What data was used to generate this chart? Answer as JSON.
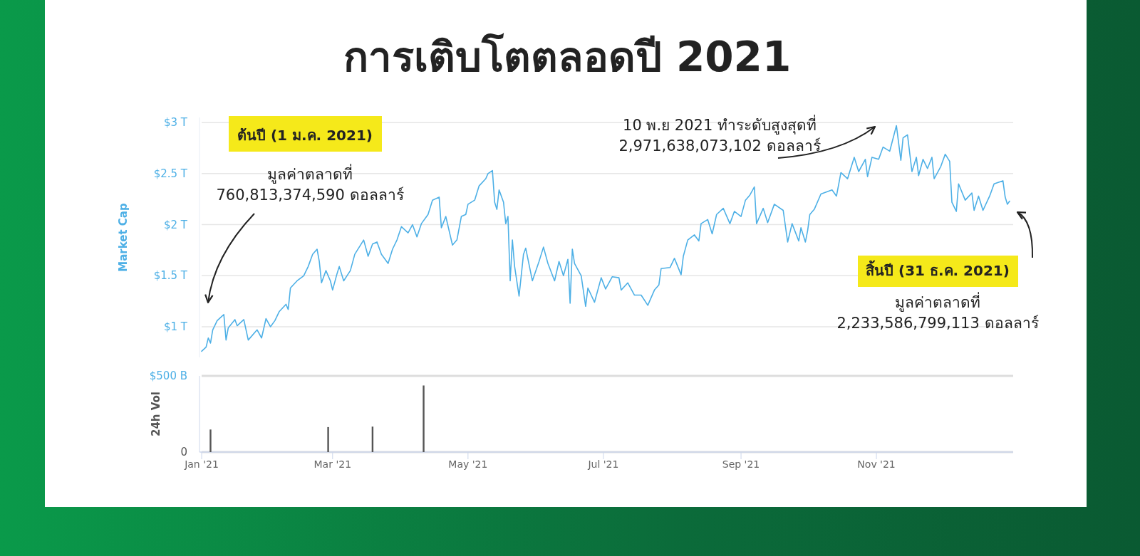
{
  "chart_data": [
    {
      "type": "line",
      "title": "การเติบโตตลอดปี 2021",
      "ylabel": "Market Cap",
      "tick_labels": "y",
      "grid": "y",
      "x": [
        "2021-01-01",
        "2021-01-03",
        "2021-01-04",
        "2021-01-05",
        "2021-01-06",
        "2021-01-08",
        "2021-01-10",
        "2021-01-11",
        "2021-01-12",
        "2021-01-13",
        "2021-01-16",
        "2021-01-17",
        "2021-01-20",
        "2021-01-22",
        "2021-01-26",
        "2021-01-28",
        "2021-01-30",
        "2021-02-01",
        "2021-02-03",
        "2021-02-05",
        "2021-02-08",
        "2021-02-09",
        "2021-02-10",
        "2021-02-13",
        "2021-02-16",
        "2021-02-18",
        "2021-02-20",
        "2021-02-22",
        "2021-02-23",
        "2021-02-24",
        "2021-02-26",
        "2021-02-28",
        "2021-03-01",
        "2021-03-03",
        "2021-03-04",
        "2021-03-06",
        "2021-03-09",
        "2021-03-11",
        "2021-03-15",
        "2021-03-17",
        "2021-03-19",
        "2021-03-21",
        "2021-03-23",
        "2021-03-26",
        "2021-03-28",
        "2021-03-30",
        "2021-04-01",
        "2021-04-04",
        "2021-04-06",
        "2021-04-08",
        "2021-04-10",
        "2021-04-13",
        "2021-04-15",
        "2021-04-18",
        "2021-04-19",
        "2021-04-21",
        "2021-04-24",
        "2021-04-26",
        "2021-04-28",
        "2021-04-30",
        "2021-05-01",
        "2021-05-04",
        "2021-05-06",
        "2021-05-09",
        "2021-05-10",
        "2021-05-12",
        "2021-05-13",
        "2021-05-14",
        "2021-05-15",
        "2021-05-17",
        "2021-05-18",
        "2021-05-19",
        "2021-05-20",
        "2021-05-21",
        "2021-05-22",
        "2021-05-24",
        "2021-05-26",
        "2021-05-27",
        "2021-05-30",
        "2021-06-02",
        "2021-06-04",
        "2021-06-06",
        "2021-06-09",
        "2021-06-11",
        "2021-06-13",
        "2021-06-15",
        "2021-06-16",
        "2021-06-17",
        "2021-06-18",
        "2021-06-21",
        "2021-06-23",
        "2021-06-24",
        "2021-06-27",
        "2021-06-30",
        "2021-07-02",
        "2021-07-05",
        "2021-07-08",
        "2021-07-09",
        "2021-07-12",
        "2021-07-15",
        "2021-07-18",
        "2021-07-21",
        "2021-07-24",
        "2021-07-26",
        "2021-07-27",
        "2021-07-31",
        "2021-08-02",
        "2021-08-05",
        "2021-08-06",
        "2021-08-08",
        "2021-08-11",
        "2021-08-13",
        "2021-08-14",
        "2021-08-17",
        "2021-08-19",
        "2021-08-21",
        "2021-08-24",
        "2021-08-27",
        "2021-08-29",
        "2021-09-01",
        "2021-09-03",
        "2021-09-05",
        "2021-09-07",
        "2021-09-08",
        "2021-09-11",
        "2021-09-13",
        "2021-09-16",
        "2021-09-20",
        "2021-09-22",
        "2021-09-24",
        "2021-09-27",
        "2021-09-28",
        "2021-09-30",
        "2021-10-01",
        "2021-10-02",
        "2021-10-04",
        "2021-10-07",
        "2021-10-12",
        "2021-10-14",
        "2021-10-16",
        "2021-10-19",
        "2021-10-22",
        "2021-10-24",
        "2021-10-27",
        "2021-10-28",
        "2021-10-30",
        "2021-11-02",
        "2021-11-04",
        "2021-11-07",
        "2021-11-10",
        "2021-11-12",
        "2021-11-13",
        "2021-11-15",
        "2021-11-17",
        "2021-11-19",
        "2021-11-20",
        "2021-11-22",
        "2021-11-24",
        "2021-11-26",
        "2021-11-27",
        "2021-11-30",
        "2021-12-02",
        "2021-12-04",
        "2021-12-05",
        "2021-12-07",
        "2021-12-08",
        "2021-12-11",
        "2021-12-14",
        "2021-12-15",
        "2021-12-17",
        "2021-12-19",
        "2021-12-22",
        "2021-12-24",
        "2021-12-28",
        "2021-12-29",
        "2021-12-30",
        "2021-12-31"
      ],
      "series": [
        {
          "color": "#4eb0e6",
          "values": [
            0.76,
            0.8,
            0.89,
            0.84,
            0.97,
            1.06,
            1.1,
            1.12,
            0.87,
            0.99,
            1.07,
            1.01,
            1.07,
            0.87,
            0.97,
            0.89,
            1.08,
            1.0,
            1.06,
            1.15,
            1.22,
            1.17,
            1.38,
            1.45,
            1.5,
            1.59,
            1.71,
            1.76,
            1.64,
            1.43,
            1.55,
            1.45,
            1.36,
            1.52,
            1.59,
            1.45,
            1.55,
            1.71,
            1.85,
            1.69,
            1.81,
            1.83,
            1.71,
            1.62,
            1.76,
            1.85,
            1.98,
            1.92,
            2.0,
            1.88,
            2.01,
            2.1,
            2.24,
            2.27,
            1.97,
            2.08,
            1.8,
            1.85,
            2.08,
            2.1,
            2.2,
            2.24,
            2.38,
            2.45,
            2.5,
            2.53,
            2.22,
            2.15,
            2.34,
            2.22,
            2.01,
            2.08,
            1.45,
            1.85,
            1.59,
            1.3,
            1.71,
            1.77,
            1.45,
            1.64,
            1.78,
            1.62,
            1.45,
            1.64,
            1.5,
            1.66,
            1.23,
            1.76,
            1.62,
            1.5,
            1.2,
            1.38,
            1.24,
            1.48,
            1.37,
            1.49,
            1.48,
            1.36,
            1.43,
            1.31,
            1.31,
            1.21,
            1.36,
            1.41,
            1.57,
            1.58,
            1.67,
            1.51,
            1.69,
            1.85,
            1.9,
            1.84,
            2.01,
            2.05,
            1.91,
            2.1,
            2.16,
            2.01,
            2.13,
            2.08,
            2.24,
            2.29,
            2.37,
            2.01,
            2.16,
            2.02,
            2.2,
            2.14,
            1.83,
            2.01,
            1.84,
            1.97,
            1.83,
            1.94,
            2.1,
            2.15,
            2.3,
            2.34,
            2.28,
            2.51,
            2.45,
            2.66,
            2.52,
            2.64,
            2.47,
            2.66,
            2.64,
            2.76,
            2.72,
            2.97,
            2.63,
            2.85,
            2.88,
            2.52,
            2.66,
            2.48,
            2.64,
            2.55,
            2.66,
            2.45,
            2.57,
            2.69,
            2.62,
            2.22,
            2.13,
            2.4,
            2.24,
            2.31,
            2.14,
            2.28,
            2.14,
            2.28,
            2.4,
            2.43,
            2.27,
            2.2,
            2.23
          ]
        }
      ],
      "xlim": [
        "2021-01-01",
        "2021-12-31"
      ],
      "ylim": [
        0.7,
        3.05
      ],
      "yticks": [
        {
          "value": 1,
          "label": "$1 T"
        },
        {
          "value": 1.5,
          "label": "$1.5 T"
        },
        {
          "value": 2,
          "label": "$2 T"
        },
        {
          "value": 2.5,
          "label": "$2.5 T"
        },
        {
          "value": 3,
          "label": "$3 T"
        }
      ],
      "annotations": [
        "ต้นปี (1 ม.ค. 2021)",
        "มูลค่าตลาดที่\n760,813,374,590 ดอลลาร์",
        "10 พ.ย 2021 ทำระดับสูงสุดที่\n2,971,638,073,102 ดอลลาร์",
        "สิ้นปี (31 ธ.ค. 2021)",
        "มูลค่าตลาดที่\n2,233,586,799,113 ดอลลาร์"
      ]
    },
    {
      "type": "bar",
      "ylabel": "24h Vol",
      "grid": "y",
      "x": [
        "2021-01-05",
        "2021-02-27",
        "2021-03-19",
        "2021-04-11"
      ],
      "series": [
        {
          "color": "#555555",
          "values": [
            148,
            164,
            167,
            437
          ]
        }
      ],
      "xlim": [
        "2021-01-01",
        "2021-12-31"
      ],
      "xticks": [
        {
          "value": "2021-01-01",
          "label": "Jan '21"
        },
        {
          "value": "2021-03-01",
          "label": "Mar '21"
        },
        {
          "value": "2021-05-01",
          "label": "May '21"
        },
        {
          "value": "2021-07-01",
          "label": "Jul '21"
        },
        {
          "value": "2021-09-01",
          "label": "Sep '21"
        },
        {
          "value": "2021-11-01",
          "label": "Nov '21"
        }
      ],
      "ylim": [
        0,
        500
      ],
      "yticks": [
        0,
        {
          "value": 500,
          "label": "$500 B"
        }
      ]
    }
  ]
}
